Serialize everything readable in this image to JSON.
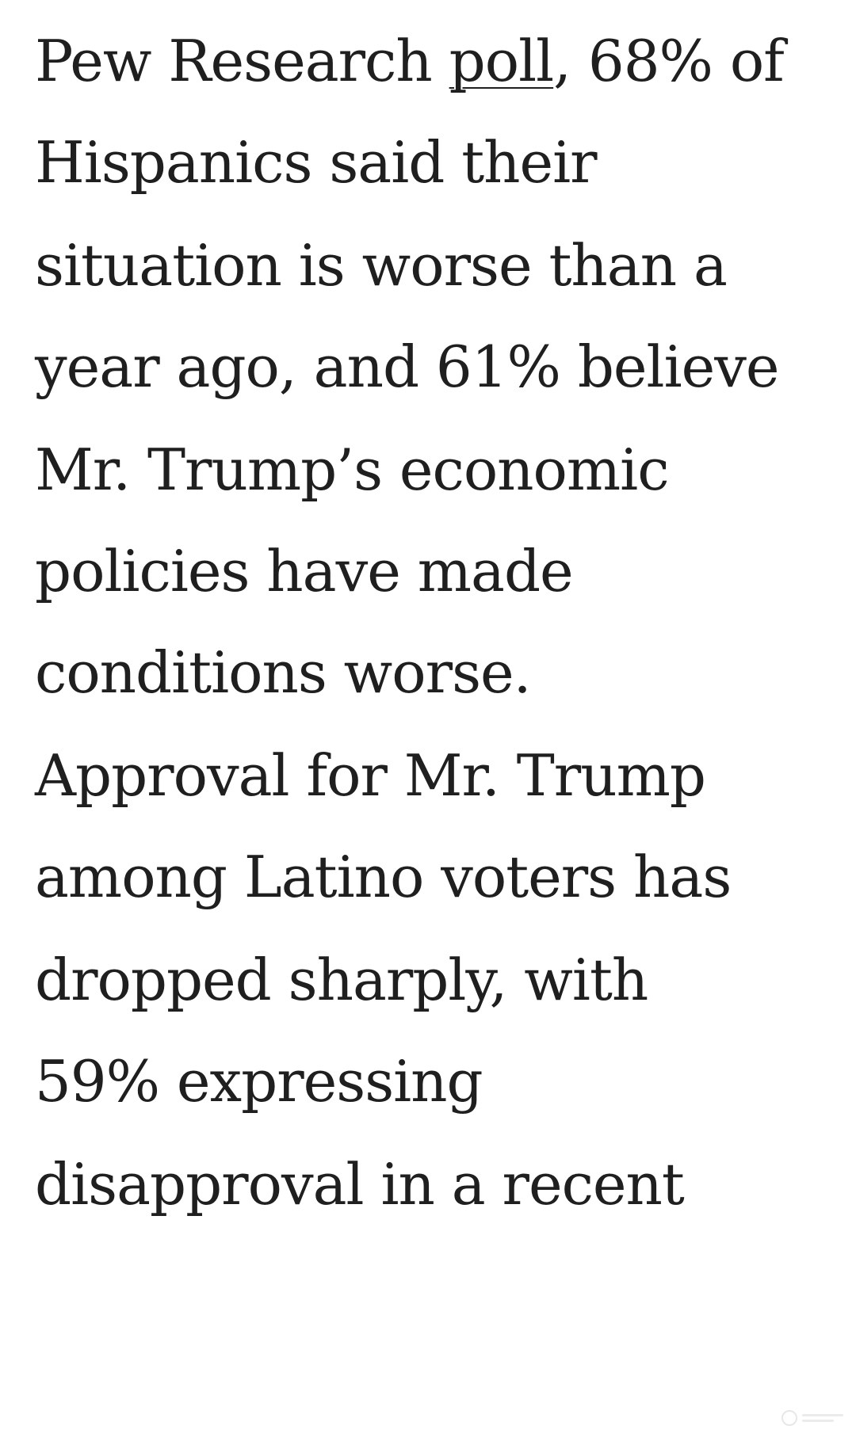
{
  "article": {
    "line1_before": "Pew Research ",
    "line1_link": "poll",
    "line1_after": ", 68% of",
    "line2": "Hispanics said their",
    "line3": "situation is worse than a",
    "line4": "year ago, and 61% believe",
    "line5": "Mr. Trump’s economic",
    "line6": "policies have made",
    "line7": "conditions worse.",
    "line8": "Approval for Mr. Trump",
    "line9": "among Latino voters has",
    "line10": "dropped sharply, with",
    "line11": "59% expressing",
    "line12": "disapproval in a recent"
  },
  "watermark": {
    "icon": "watermark-logo-icon"
  }
}
